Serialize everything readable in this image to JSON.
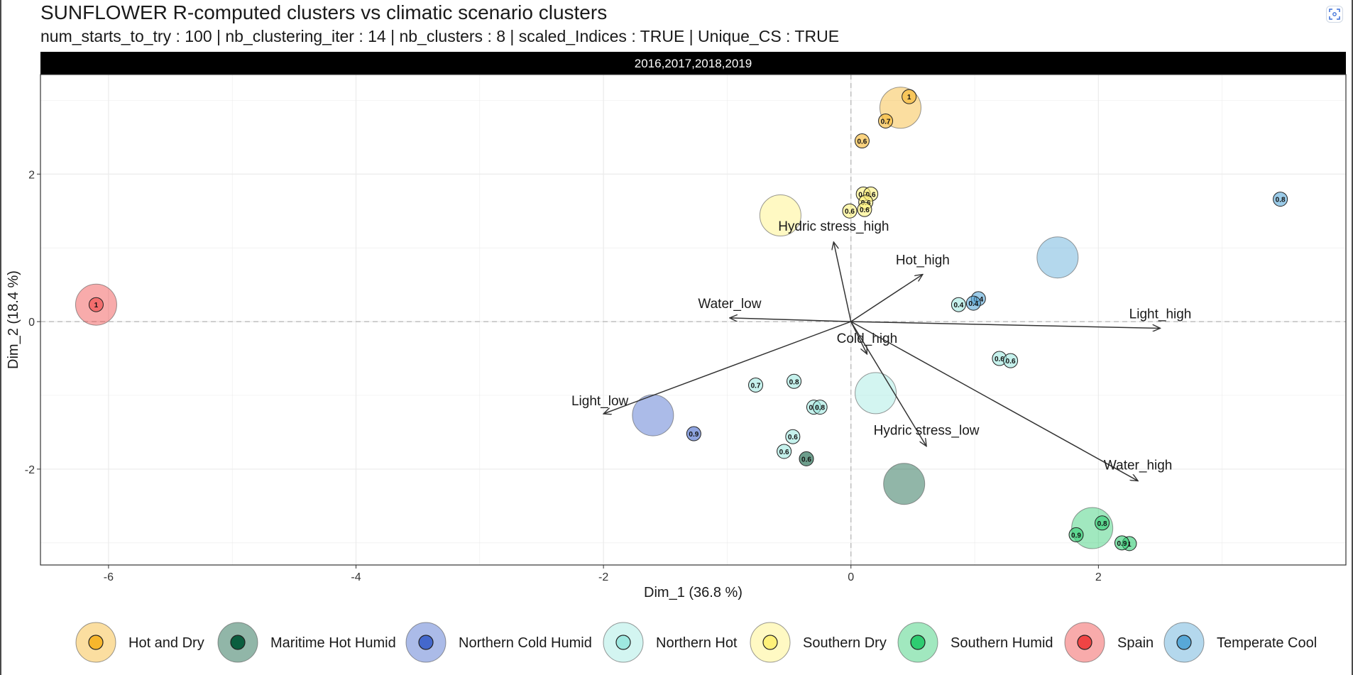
{
  "header": {
    "title": "SUNFLOWER R-computed clusters vs climatic scenario clusters",
    "subtitle": "num_starts_to_try : 100 | nb_clustering_iter : 14 | nb_clusters : 8 | scaled_Indices : TRUE | Unique_CS : TRUE"
  },
  "toolbar": {
    "expand_icon": "expand-icon"
  },
  "chart_data": {
    "type": "scatter",
    "panel_label": "2016,2017,2018,2019",
    "xlabel": "Dim_1 (36.8 %)",
    "ylabel": "Dim_2 (18.4 %)",
    "xlim": [
      -6.55,
      4.0
    ],
    "ylim": [
      -3.3,
      3.35
    ],
    "x_ticks": [
      -6,
      -4,
      -2,
      0,
      2
    ],
    "y_ticks": [
      2,
      0,
      -2
    ],
    "grid": true,
    "legend_position": "bottom",
    "clusters": [
      {
        "name": "Hot and Dry",
        "color": "#F7B62C",
        "centroid": [
          0.4,
          2.9
        ],
        "points": [
          {
            "x": 0.47,
            "y": 3.05,
            "label": "1"
          },
          {
            "x": 0.28,
            "y": 2.72,
            "label": "0.7"
          },
          {
            "x": 0.09,
            "y": 2.45,
            "label": "0.6"
          }
        ]
      },
      {
        "name": "Maritime Hot Humid",
        "color": "#0B5E3F",
        "centroid": [
          0.43,
          -2.2
        ],
        "points": [
          {
            "x": -0.36,
            "y": -1.86,
            "label": "0.6"
          }
        ]
      },
      {
        "name": "Northern Cold Humid",
        "color": "#4468CC",
        "centroid": [
          -1.6,
          -1.27
        ],
        "points": [
          {
            "x": -1.27,
            "y": -1.52,
            "label": "0.9"
          }
        ]
      },
      {
        "name": "Northern Hot",
        "color": "#9EE8E0",
        "centroid": [
          0.2,
          -0.97
        ],
        "points": [
          {
            "x": -0.77,
            "y": -0.86,
            "label": "0.7"
          },
          {
            "x": -0.46,
            "y": -0.81,
            "label": "0.8"
          },
          {
            "x": -0.3,
            "y": -1.16,
            "label": "0.6"
          },
          {
            "x": -0.25,
            "y": -1.16,
            "label": "0.8"
          },
          {
            "x": -0.47,
            "y": -1.56,
            "label": "0.6"
          },
          {
            "x": -0.54,
            "y": -1.76,
            "label": "0.6"
          },
          {
            "x": 0.87,
            "y": 0.23,
            "label": "0.4"
          },
          {
            "x": 1.2,
            "y": -0.5,
            "label": "0.6"
          },
          {
            "x": 1.29,
            "y": -0.53,
            "label": "0.6"
          }
        ]
      },
      {
        "name": "Southern Dry",
        "color": "#FFF179",
        "centroid": [
          -0.57,
          1.44
        ],
        "points": [
          {
            "x": 0.1,
            "y": 1.73,
            "label": "0.7"
          },
          {
            "x": 0.16,
            "y": 1.73,
            "label": "0.6"
          },
          {
            "x": 0.12,
            "y": 1.62,
            "label": "0.6"
          },
          {
            "x": -0.01,
            "y": 1.5,
            "label": "0.6"
          },
          {
            "x": 0.11,
            "y": 1.52,
            "label": "0.6"
          }
        ]
      },
      {
        "name": "Southern Humid",
        "color": "#2ECC71",
        "centroid": [
          1.95,
          -2.8
        ],
        "points": [
          {
            "x": 2.03,
            "y": -2.73,
            "label": "0.8"
          },
          {
            "x": 1.82,
            "y": -2.89,
            "label": "0.9"
          },
          {
            "x": 2.25,
            "y": -3.01,
            "label": "1"
          },
          {
            "x": 2.19,
            "y": -3.0,
            "label": "0.9"
          }
        ]
      },
      {
        "name": "Spain",
        "color": "#F04444",
        "centroid": [
          -6.1,
          0.23
        ],
        "points": [
          {
            "x": -6.1,
            "y": 0.23,
            "label": "1"
          }
        ]
      },
      {
        "name": "Temperate Cool",
        "color": "#58A8D8",
        "centroid": [
          1.67,
          0.87
        ],
        "points": [
          {
            "x": 3.47,
            "y": 1.66,
            "label": "0.8"
          },
          {
            "x": 1.03,
            "y": 0.31,
            "label": "0.4"
          },
          {
            "x": 0.99,
            "y": 0.25,
            "label": "0.4"
          }
        ]
      }
    ],
    "vectors": [
      {
        "name": "Hydric stress_high",
        "x": -0.14,
        "y": 1.08
      },
      {
        "name": "Hot_high",
        "x": 0.58,
        "y": 0.64
      },
      {
        "name": "Water_low",
        "x": -0.98,
        "y": 0.05
      },
      {
        "name": "Light_high",
        "x": 2.5,
        "y": -0.09
      },
      {
        "name": "Cold_high",
        "x": 0.13,
        "y": -0.44
      },
      {
        "name": "Light_low",
        "x": -2.0,
        "y": -1.25
      },
      {
        "name": "Hydric stress_low",
        "x": 0.61,
        "y": -1.69
      },
      {
        "name": "Water_high",
        "x": 2.32,
        "y": -2.16
      }
    ]
  }
}
